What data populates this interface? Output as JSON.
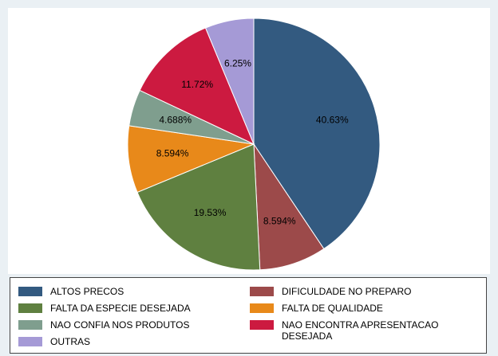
{
  "chart_data": {
    "type": "pie",
    "categories": [
      "ALTOS PRECOS",
      "DIFICULDADE NO PREPARO",
      "FALTA DA ESPECIE DESEJADA",
      "FALTA DE QUALIDADE",
      "NAO CONFIA NOS PRODUTOS",
      "NAO ENCONTRA APRESENTACAO DESEJADA",
      "OUTRAS"
    ],
    "values": [
      40.63,
      8.594,
      19.53,
      8.594,
      4.688,
      11.72,
      6.25
    ],
    "value_labels": [
      "40.63%",
      "8.594%",
      "19.53%",
      "8.594%",
      "4.688%",
      "11.72%",
      "6.25%"
    ],
    "colors": [
      "#335a80",
      "#9c4a4a",
      "#5f8040",
      "#e8891a",
      "#7f9e8e",
      "#cc1a40",
      "#a59ad6"
    ],
    "legend": "bottom"
  }
}
